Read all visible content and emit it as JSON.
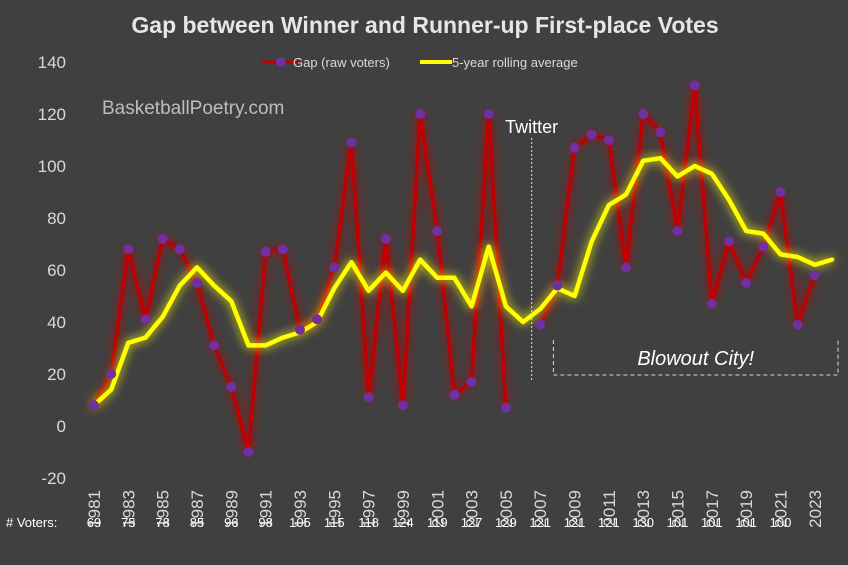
{
  "chart_data": {
    "type": "line",
    "title": "Gap between Winner and Runner-up First-place Votes",
    "watermark": "BasketballPoetry.com",
    "ylim": [
      -20,
      140
    ],
    "yticks": [
      -20,
      0,
      20,
      40,
      60,
      80,
      100,
      120,
      140
    ],
    "x": [
      1981,
      1982,
      1983,
      1984,
      1985,
      1986,
      1987,
      1988,
      1989,
      1990,
      1991,
      1992,
      1993,
      1994,
      1995,
      1996,
      1997,
      1998,
      1999,
      2000,
      2001,
      2002,
      2003,
      2004,
      2005,
      2006,
      2007,
      2008,
      2009,
      2010,
      2011,
      2012,
      2013,
      2014,
      2015,
      2016,
      2017,
      2018,
      2019,
      2020,
      2021,
      2022,
      2023,
      2024
    ],
    "xtick_labels": [
      1981,
      1983,
      1985,
      1987,
      1989,
      1991,
      1993,
      1995,
      1997,
      1999,
      2001,
      2003,
      2005,
      2007,
      2009,
      2011,
      2013,
      2015,
      2017,
      2019,
      2021,
      2023
    ],
    "series": [
      {
        "name": "Gap (raw voters)",
        "color": "#c00000",
        "marker_color": "#7030a0",
        "values": [
          8,
          20,
          68,
          41,
          72,
          68,
          55,
          31,
          15,
          -10,
          67,
          68,
          37,
          41,
          61,
          109,
          11,
          72,
          8,
          120,
          75,
          12,
          17,
          120,
          7,
          null,
          39,
          54,
          107,
          112,
          110,
          61,
          120,
          113,
          75,
          131,
          47,
          71,
          55,
          69,
          90,
          39,
          58,
          null
        ]
      },
      {
        "name": "5-year rolling average",
        "color": "#ffff00",
        "values": [
          8,
          14,
          32,
          34,
          42,
          54,
          61,
          54,
          48,
          31,
          31,
          34,
          36,
          40,
          53,
          63,
          52,
          59,
          52,
          64,
          57,
          57,
          46,
          69,
          46,
          40,
          45,
          53,
          50,
          71,
          85,
          89,
          102,
          103,
          96,
          100,
          97,
          87,
          75,
          74,
          66,
          65,
          62,
          64
        ]
      }
    ],
    "legend_position": "top",
    "annotations": {
      "twitter_label": "Twitter",
      "twitter_year": 2006.5,
      "blowout_label": "Blowout City!",
      "blowout_range": [
        2008,
        2024
      ]
    },
    "voters_label": "# Voters:",
    "voters": [
      "69",
      "75",
      "78",
      "85",
      "96",
      "98",
      "105",
      "115",
      "118",
      "124",
      "119",
      "127",
      "129",
      "121",
      "121",
      "121",
      "130",
      "101",
      "101",
      "101",
      "100"
    ]
  }
}
